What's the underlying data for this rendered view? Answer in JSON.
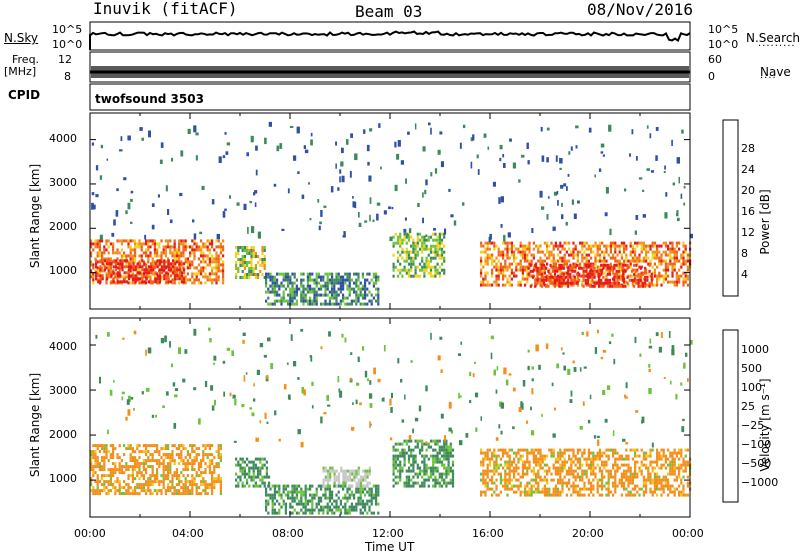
{
  "header": {
    "site": "Inuvik (fitACF)",
    "beam": "Beam 03",
    "date": "08/Nov/2016"
  },
  "strips": {
    "nsky_label": "N.Sky",
    "nsky_ticks": [
      "10^5",
      "10^0"
    ],
    "nsearch_label": "N.Search",
    "nsearch_ticks": [
      "10^5",
      "10^0"
    ],
    "freq_label_1": "Freq.",
    "freq_label_2": "[MHz]",
    "freq_ticks": [
      "12",
      "8"
    ],
    "nave_label": "Nave",
    "nave_ticks": [
      "60",
      "0"
    ],
    "cpid_label": "CPID",
    "cpid_value": "twofsound 3503"
  },
  "colors": {
    "power": [
      "#0022ff",
      "#2f4fa8",
      "#3c8a5c",
      "#6cc33a",
      "#f2d21a",
      "#f28f1a",
      "#f2601a",
      "#e61a1a"
    ],
    "velocity": [
      "#e61a1a",
      "#f2601a",
      "#f28f1a",
      "#f2c61a",
      "#c8c8c8",
      "#6cc33a",
      "#3c8a5c",
      "#2f4fa8",
      "#0022ff"
    ]
  },
  "chart_data": [
    {
      "type": "heatmap",
      "name": "power-panel",
      "xlabel": "",
      "ylabel": "Slant Range [km]",
      "xlim": [
        "00:00",
        "00:00"
      ],
      "ylim": [
        180,
        4600
      ],
      "yticks": [
        "1000",
        "2000",
        "3000",
        "4000"
      ],
      "colorbar": {
        "label": "Power [dB]",
        "ticks": [
          "4",
          "8",
          "12",
          "16",
          "20",
          "24",
          "28"
        ],
        "range": [
          0,
          32
        ]
      },
      "bands": [
        {
          "t0": 0.0,
          "t1": 5.3,
          "r0": 750,
          "r1": 1750,
          "value": 24
        },
        {
          "t0": 0.2,
          "t1": 3.8,
          "r0": 800,
          "r1": 1300,
          "value": 30
        },
        {
          "t0": 5.8,
          "t1": 7.0,
          "r0": 900,
          "r1": 1600,
          "value": 16
        },
        {
          "t0": 7.0,
          "t1": 11.5,
          "r0": 300,
          "r1": 1000,
          "value": 10
        },
        {
          "t0": 12.1,
          "t1": 14.2,
          "r0": 900,
          "r1": 1900,
          "value": 14
        },
        {
          "t0": 15.6,
          "t1": 24.0,
          "r0": 700,
          "r1": 1700,
          "value": 24
        },
        {
          "t0": 17.5,
          "t1": 22.5,
          "r0": 700,
          "r1": 1200,
          "value": 30
        }
      ]
    },
    {
      "type": "heatmap",
      "name": "velocity-panel",
      "xlabel": "Time UT",
      "ylabel": "Slant Range [km]",
      "xlim": [
        "00:00",
        "00:00"
      ],
      "ylim": [
        180,
        4600
      ],
      "xticks": [
        "00:00",
        "04:00",
        "08:00",
        "12:00",
        "16:00",
        "20:00",
        "00:00"
      ],
      "yticks": [
        "1000",
        "2000",
        "3000",
        "4000"
      ],
      "colorbar": {
        "label": "Velocity [m s⁻¹]",
        "ticks": [
          "1000",
          "500",
          "100",
          "25",
          "−25",
          "−100",
          "−500",
          "−1000"
        ],
        "range": [
          -1000,
          1000
        ]
      },
      "bands": [
        {
          "t0": 0.0,
          "t1": 5.2,
          "r0": 700,
          "r1": 1800,
          "value": -150
        },
        {
          "t0": 5.8,
          "t1": 7.2,
          "r0": 900,
          "r1": 1500,
          "value": 200
        },
        {
          "t0": 7.0,
          "t1": 11.5,
          "r0": 300,
          "r1": 900,
          "value": 150
        },
        {
          "t0": 9.3,
          "t1": 11.2,
          "r0": 900,
          "r1": 1300,
          "value": 0
        },
        {
          "t0": 12.1,
          "t1": 14.5,
          "r0": 900,
          "r1": 1900,
          "value": 250
        },
        {
          "t0": 15.6,
          "t1": 24.0,
          "r0": 700,
          "r1": 1700,
          "value": -120
        }
      ]
    }
  ]
}
